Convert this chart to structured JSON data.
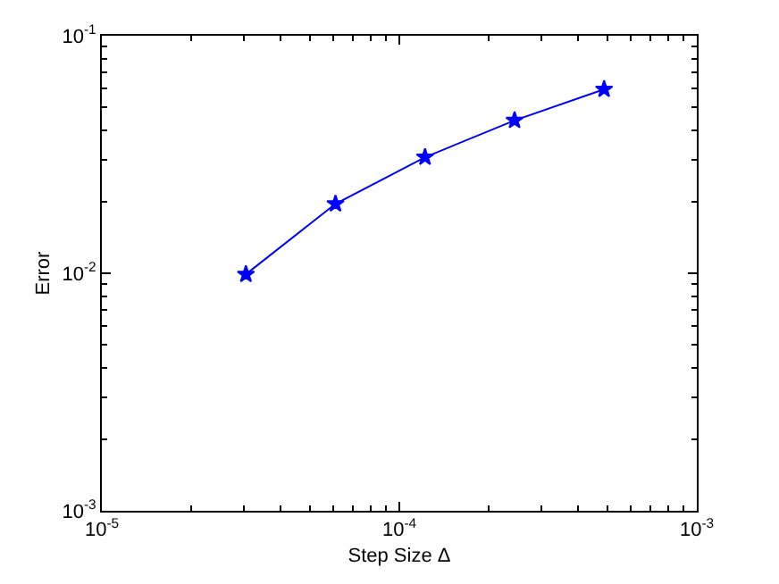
{
  "chart_data": {
    "type": "line",
    "xlabel": "Step Size Δ",
    "ylabel": "Error",
    "log": "xy",
    "grid": false,
    "marker": "star",
    "line_style": "solid",
    "x": [
      3.05e-05,
      6.1e-05,
      0.000122,
      0.000244,
      0.000488
    ],
    "series": [
      {
        "color": "#0000ff",
        "values": [
          0.0099,
          0.0196,
          0.0308,
          0.044,
          0.0595
        ]
      }
    ],
    "xlim": [
      1e-05,
      0.001
    ],
    "xticks": [
      {
        "value": 1e-05,
        "label": "10$^{-5}$"
      },
      {
        "value": 0.0001,
        "label": "10$^{-4}$"
      },
      {
        "value": 0.001,
        "label": "10$^{-3}$"
      }
    ],
    "ylim": [
      0.001,
      0.1
    ],
    "yticks": [
      {
        "value": 0.001,
        "label": "10$^{-3}$"
      },
      {
        "value": 0.01,
        "label": "10$^{-2}$"
      },
      {
        "value": 0.1,
        "label": "10$^{-1}$"
      }
    ]
  }
}
